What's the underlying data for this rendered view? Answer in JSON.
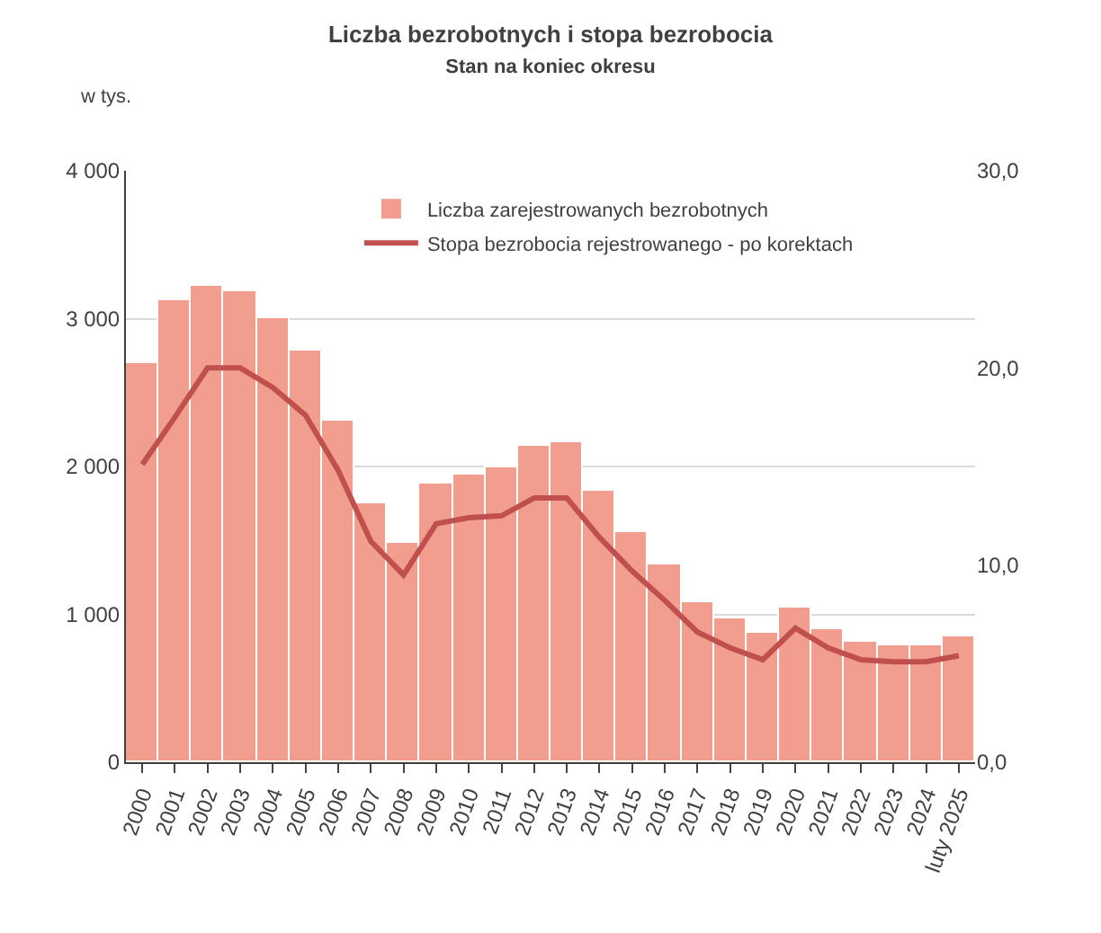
{
  "chart_data": {
    "type": "bar",
    "title": "Liczba bezrobotnych i stopa bezrobocia",
    "subtitle": "Stan na koniec okresu",
    "ylabel": "w tys.",
    "categories": [
      "2000",
      "2001",
      "2002",
      "2003",
      "2004",
      "2005",
      "2006",
      "2007",
      "2008",
      "2009",
      "2010",
      "2011",
      "2012",
      "2013",
      "2014",
      "2015",
      "2016",
      "2017",
      "2018",
      "2019",
      "2020",
      "2021",
      "2022",
      "2023",
      "2024",
      "luty 2025"
    ],
    "series": [
      {
        "name": "Liczba zarejestrowanych bezrobotnych",
        "color": "#f29e8e",
        "values": [
          2700,
          3120,
          3220,
          3180,
          3000,
          2780,
          2310,
          1750,
          1480,
          1890,
          1950,
          1990,
          2140,
          2160,
          1830,
          1560,
          1340,
          1080,
          970,
          870,
          1050,
          900,
          810,
          790,
          790,
          850
        ]
      },
      {
        "name": "Stopa bezrobocia rejestrowanego - po korektach",
        "type": "line",
        "axis": "y2",
        "color": "#c0504d",
        "values": [
          15.1,
          17.5,
          20.0,
          20.0,
          19.0,
          17.6,
          14.8,
          11.2,
          9.5,
          12.1,
          12.4,
          12.5,
          13.4,
          13.4,
          11.4,
          9.7,
          8.2,
          6.6,
          5.8,
          5.2,
          6.8,
          5.8,
          5.2,
          5.1,
          5.1,
          5.4
        ]
      }
    ],
    "ylim": [
      0,
      4000
    ],
    "yticks": [
      {
        "value": 0,
        "label": "0"
      },
      {
        "value": 1000,
        "label": "1 000"
      },
      {
        "value": 2000,
        "label": "2 000"
      },
      {
        "value": 3000,
        "label": "3 000"
      },
      {
        "value": 4000,
        "label": "4 000"
      }
    ],
    "y2lim": [
      0,
      30
    ],
    "y2ticks": [
      {
        "value": 0,
        "label": "0,0"
      },
      {
        "value": 10,
        "label": "10,0"
      },
      {
        "value": 20,
        "label": "20,0"
      },
      {
        "value": 30,
        "label": "30,0"
      }
    ],
    "grid": "y",
    "legend": "top right",
    "marker": "none",
    "line_style": "solid"
  }
}
